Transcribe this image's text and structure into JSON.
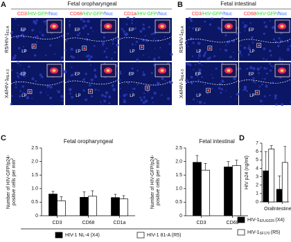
{
  "panels": {
    "A": {
      "label": "A",
      "title": "Fetal oropharyngeal",
      "columns": [
        [
          "CD3",
          "/HIV-GFP",
          "/Nuc"
        ],
        [
          "CD68",
          "/HIV-GFP",
          "/Nuc"
        ],
        [
          "CD1a",
          "/HIV-GFP",
          "/Nuc"
        ]
      ],
      "rows": [
        {
          "main": "R5/HIV-1",
          "sub": "81-A"
        },
        {
          "main": "X4/HIV-1",
          "sub": "NL4-3"
        }
      ],
      "image_labels": [
        [
          "EP",
          "LP"
        ],
        [
          "EP",
          "LP"
        ],
        [
          "EP",
          "LP"
        ],
        [
          "EP",
          "LP"
        ],
        [
          "EP",
          "LP"
        ],
        [
          "EP",
          "LP"
        ]
      ]
    },
    "B": {
      "label": "B",
      "title": "Fetal intestinal",
      "columns": [
        [
          "CD3",
          "/HIV-GFP",
          "/Nuc"
        ],
        [
          "CD68",
          "/HIV-GFP",
          "/Nuc"
        ]
      ],
      "rows": [
        {
          "main": "R5/HIV-1",
          "sub": "81-A"
        },
        {
          "main": "X4/HIV-1",
          "sub": "NL4-3"
        }
      ],
      "image_labels": [
        [
          "EP",
          "LP"
        ],
        [
          "EP",
          "LP"
        ],
        [
          "EP",
          "LP"
        ],
        [
          "EP",
          "LP"
        ]
      ]
    },
    "C": {
      "label": "C"
    },
    "D": {
      "label": "D"
    }
  },
  "chart_data": [
    {
      "type": "bar",
      "title": "Fetal oropharyngeal",
      "y_label": [
        "Number of HIV-GFP/p24-",
        "positive cells per mm"
      ],
      "y_label_sup": "2",
      "categories": [
        "CD3",
        "CD68",
        "CD1a"
      ],
      "series": [
        {
          "name": "HIV-1 NL-4 (X4)",
          "color": "#000000",
          "values": [
            0.8,
            0.68,
            0.67
          ],
          "errors": [
            0.1,
            0.2,
            0.12
          ]
        },
        {
          "name": "HIV-1 81-A (R5)",
          "color": "#ffffff",
          "values": [
            0.55,
            0.72,
            0.62
          ],
          "errors": [
            0.15,
            0.2,
            0.12
          ]
        }
      ],
      "ylim": [
        0,
        2.5
      ],
      "yticks": [
        0,
        0.5,
        {
          "value": 1,
          "label": "1.0"
        },
        1.5,
        {
          "value": 2,
          "label": "2.0"
        },
        2.5
      ]
    },
    {
      "type": "bar",
      "title": "Fetal intestinal",
      "y_label": [
        "Number of HIV-GFP/p24-",
        "positive cells per mm"
      ],
      "y_label_sup": "2",
      "categories": [
        "CD3",
        "CD68"
      ],
      "series": [
        {
          "color": "#000000",
          "values": [
            1.97,
            1.8
          ],
          "errors": [
            0.25,
            0.2
          ]
        },
        {
          "color": "#ffffff",
          "values": [
            1.68,
            1.85
          ],
          "errors": [
            0.25,
            0.2
          ]
        }
      ],
      "ylim": [
        0,
        2.5
      ],
      "yticks": [
        0,
        0.5,
        {
          "value": 1,
          "label": "1.0"
        },
        1.5,
        {
          "value": 2,
          "label": "2.0"
        },
        2.5
      ]
    },
    {
      "type": "bar",
      "y_label": [
        "HIV p24 (ng/ml)"
      ],
      "categories": [
        "Oral",
        "Intestine"
      ],
      "series": [
        {
          "name": "HIV-1",
          "subscript": "92UG029",
          "suffix": "(X4)",
          "color": "#000000",
          "values": [
            3.7,
            1.5
          ],
          "errors": [
            2.3,
            1.6
          ]
        },
        {
          "name": "HIV-1",
          "subscript": "SF170",
          "suffix": "(R5)",
          "color": "#ffffff",
          "values": [
            6.3,
            4.7
          ],
          "errors": [
            0.4,
            1.9
          ]
        }
      ],
      "ylim": [
        0,
        7
      ],
      "yticks": [
        0,
        1,
        2,
        3,
        4,
        5,
        6,
        7
      ]
    }
  ]
}
